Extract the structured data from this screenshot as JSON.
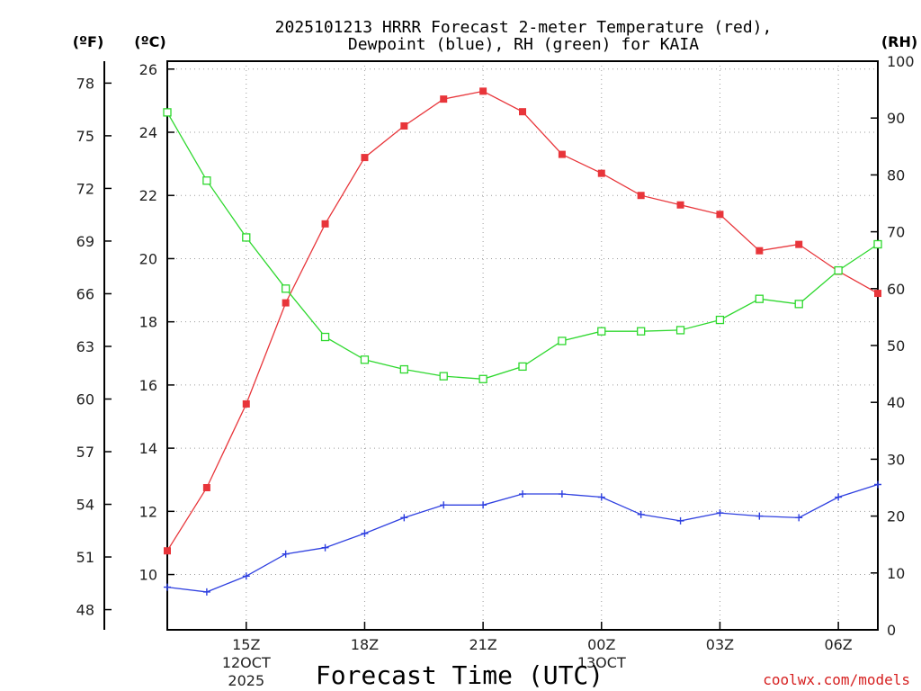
{
  "chart_data": {
    "type": "line",
    "title_line1": "2025101213 HRRR Forecast 2-meter Temperature (red),",
    "title_line2": "Dewpoint (blue), RH (green) for KAIA",
    "unit_left_f": "(ºF)",
    "unit_left_c": "(ºC)",
    "unit_right": "(RH)",
    "xlabel": "Forecast Time (UTC)",
    "credit": "coolwx.com/models",
    "x_hours": [
      13,
      14,
      15,
      16,
      17,
      18,
      19,
      20,
      21,
      22,
      23,
      24,
      25,
      26,
      27,
      28,
      29,
      30,
      31
    ],
    "xlim": [
      13,
      31
    ],
    "x_ticks": [
      {
        "hour": 15,
        "label": "15Z",
        "sub1": "12OCT",
        "sub2": "2025"
      },
      {
        "hour": 18,
        "label": "18Z",
        "sub1": "",
        "sub2": ""
      },
      {
        "hour": 21,
        "label": "21Z",
        "sub1": "",
        "sub2": ""
      },
      {
        "hour": 24,
        "label": "00Z",
        "sub1": "13OCT",
        "sub2": ""
      },
      {
        "hour": 27,
        "label": "03Z",
        "sub1": "",
        "sub2": ""
      },
      {
        "hour": 30,
        "label": "06Z",
        "sub1": "",
        "sub2": ""
      }
    ],
    "y_celsius": {
      "min": 8.25,
      "max": 26.25,
      "ticks": [
        10,
        12,
        14,
        16,
        18,
        20,
        22,
        24,
        26
      ]
    },
    "y_fahrenheit": {
      "ticks": [
        48,
        51,
        54,
        57,
        60,
        63,
        66,
        69,
        72,
        75,
        78
      ]
    },
    "y_rh": {
      "min": 0,
      "max": 100,
      "ticks": [
        0,
        10,
        20,
        30,
        40,
        50,
        60,
        70,
        80,
        90,
        100
      ]
    },
    "series": [
      {
        "name": "Temperature",
        "unit": "C",
        "color": "#e8353a",
        "marker": "filled-square",
        "values": [
          10.75,
          12.75,
          15.4,
          18.6,
          21.1,
          23.2,
          24.2,
          25.05,
          25.3,
          24.65,
          23.3,
          22.7,
          22.0,
          21.7,
          21.4,
          20.25,
          20.45,
          19.6,
          18.9
        ]
      },
      {
        "name": "Dewpoint",
        "unit": "C",
        "color": "#2f40e0",
        "marker": "plus",
        "values": [
          9.6,
          9.45,
          9.95,
          10.65,
          10.85,
          11.3,
          11.8,
          12.2,
          12.2,
          12.55,
          12.55,
          12.45,
          11.9,
          11.7,
          11.95,
          11.85,
          11.8,
          12.45,
          12.85
        ]
      },
      {
        "name": "RH",
        "unit": "%",
        "color": "#2ed82e",
        "marker": "open-square",
        "values": [
          91,
          79,
          69,
          60,
          51.5,
          47.5,
          45.8,
          44.6,
          44.1,
          46.3,
          50.8,
          52.5,
          52.5,
          52.7,
          54.5,
          58.2,
          57.3,
          63.2,
          67.8
        ]
      }
    ]
  }
}
